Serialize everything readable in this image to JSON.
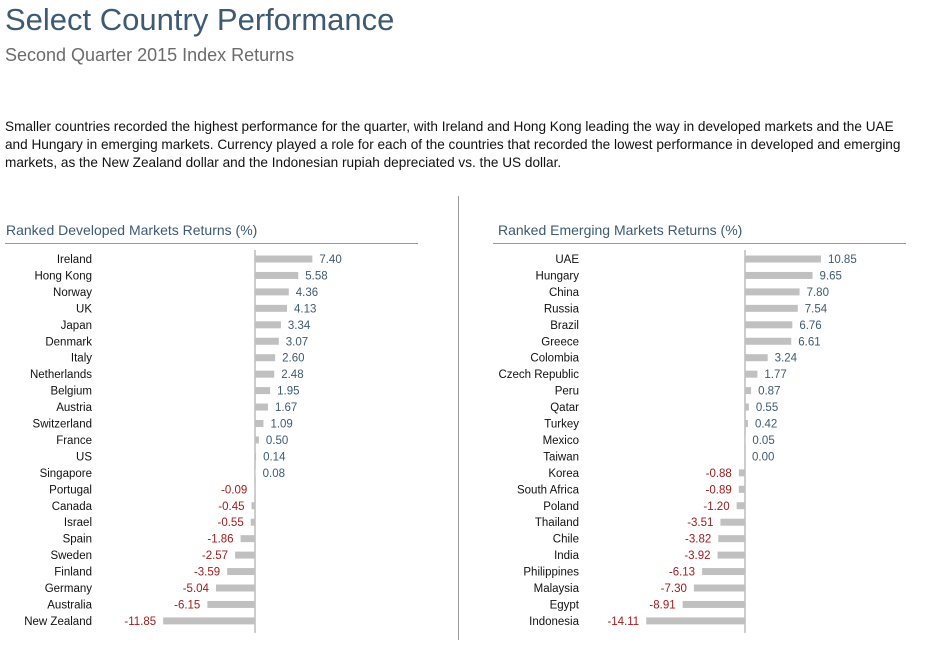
{
  "header": {
    "title": "Select Country Performance",
    "subtitle": "Second Quarter 2015 Index Returns"
  },
  "intro": "Smaller countries recorded the highest performance for the quarter, with Ireland and Hong Kong leading the way in developed markets and the UAE and Hungary in emerging markets. Currency played a role for each of the countries that recorded the lowest performance in developed and emerging markets, as the New Zealand dollar and the Indonesian rupiah depreciated vs. the US dollar.",
  "colors": {
    "bar": "#c0c0c0",
    "positive_label": "#3d5a73",
    "negative_label": "#a01c1c",
    "axis": "#9a9a9a",
    "title": "#3d5a73"
  },
  "chart_data": [
    {
      "type": "bar",
      "orientation": "horizontal",
      "title": "Ranked Developed Markets Returns (%)",
      "xlim": [
        -12.5,
        8.4
      ],
      "categories": [
        "Ireland",
        "Hong Kong",
        "Norway",
        "UK",
        "Japan",
        "Denmark",
        "Italy",
        "Netherlands",
        "Belgium",
        "Austria",
        "Switzerland",
        "France",
        "US",
        "Singapore",
        "Portugal",
        "Canada",
        "Israel",
        "Spain",
        "Sweden",
        "Finland",
        "Germany",
        "Australia",
        "New Zealand"
      ],
      "values": [
        7.4,
        5.58,
        4.36,
        4.13,
        3.34,
        3.07,
        2.6,
        2.48,
        1.95,
        1.67,
        1.09,
        0.5,
        0.14,
        0.08,
        -0.09,
        -0.45,
        -0.55,
        -1.86,
        -2.57,
        -3.59,
        -5.04,
        -6.15,
        -11.85
      ],
      "labels": [
        "7.40",
        "5.58",
        "4.36",
        "4.13",
        "3.34",
        "3.07",
        "2.60",
        "2.48",
        "1.95",
        "1.67",
        "1.09",
        "0.50",
        "0.14",
        "0.08",
        "-0.09",
        "-0.45",
        "-0.55",
        "-1.86",
        "-2.57",
        "-3.59",
        "-5.04",
        "-6.15",
        "-11.85"
      ]
    },
    {
      "type": "bar",
      "orientation": "horizontal",
      "title": "Ranked Emerging Markets Returns (%)",
      "xlim": [
        -14.9,
        13.4
      ],
      "categories": [
        "UAE",
        "Hungary",
        "China",
        "Russia",
        "Brazil",
        "Greece",
        "Colombia",
        "Czech Republic",
        "Peru",
        "Qatar",
        "Turkey",
        "Mexico",
        "Taiwan",
        "Korea",
        "South Africa",
        "Poland",
        "Thailand",
        "Chile",
        "India",
        "Philippines",
        "Malaysia",
        "Egypt",
        "Indonesia"
      ],
      "values": [
        10.85,
        9.65,
        7.8,
        7.54,
        6.76,
        6.61,
        3.24,
        1.77,
        0.87,
        0.55,
        0.42,
        0.05,
        0.0,
        -0.88,
        -0.89,
        -1.2,
        -3.51,
        -3.82,
        -3.92,
        -6.13,
        -7.3,
        -8.91,
        -14.11
      ],
      "labels": [
        "10.85",
        "9.65",
        "7.80",
        "7.54",
        "6.76",
        "6.61",
        "3.24",
        "1.77",
        "0.87",
        "0.55",
        "0.42",
        "0.05",
        "0.00",
        "-0.88",
        "-0.89",
        "-1.20",
        "-3.51",
        "-3.82",
        "-3.92",
        "-6.13",
        "-7.30",
        "-8.91",
        "-14.11"
      ]
    }
  ]
}
